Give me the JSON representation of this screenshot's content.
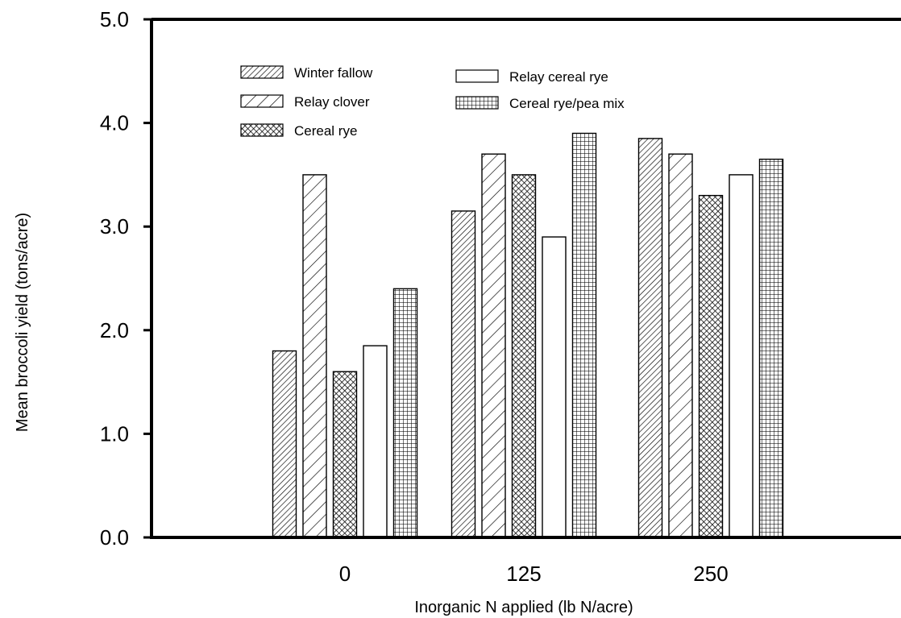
{
  "chart_data": {
    "type": "bar",
    "xlabel": "Inorganic N applied (lb N/acre)",
    "ylabel": "Mean broccoli yield (tons/acre)",
    "categories": [
      "0",
      "125",
      "250"
    ],
    "ylim": [
      0.0,
      5.0
    ],
    "yticks": [
      "0.0",
      "1.0",
      "2.0",
      "3.0",
      "4.0",
      "5.0"
    ],
    "grid": false,
    "legend_position": "top-left",
    "series": [
      {
        "name": "Winter fallow",
        "pattern": "dense-diagonal",
        "values": [
          1.8,
          3.15,
          3.85
        ]
      },
      {
        "name": "Relay clover",
        "pattern": "wide-diagonal",
        "values": [
          3.5,
          3.7,
          3.7
        ]
      },
      {
        "name": "Cereal rye",
        "pattern": "crosshatch",
        "values": [
          1.6,
          3.5,
          3.3
        ]
      },
      {
        "name": "Relay cereal rye",
        "pattern": "empty",
        "values": [
          1.85,
          2.9,
          3.5
        ]
      },
      {
        "name": "Cereal rye/pea mix",
        "pattern": "grid",
        "values": [
          2.4,
          3.9,
          3.65
        ]
      }
    ]
  }
}
